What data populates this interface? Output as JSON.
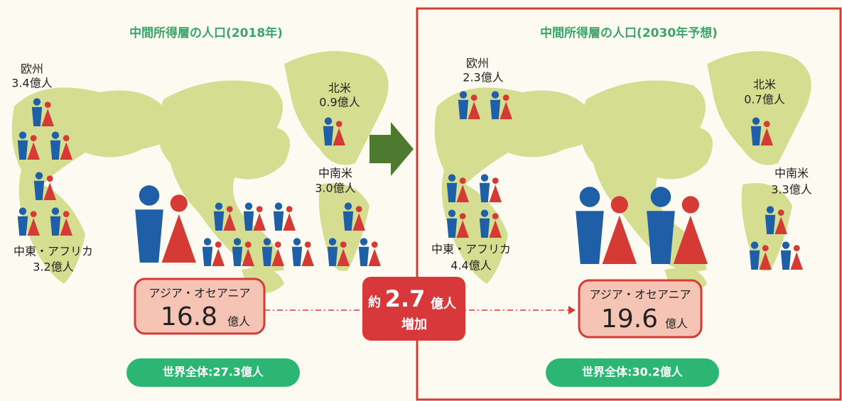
{
  "panels": [
    {
      "title": "中間所得層の人口(2018年)",
      "europe": {
        "name": "欧州",
        "value": "3.4億人"
      },
      "north_america": {
        "name": "北米",
        "value": "0.9億人"
      },
      "latin_america": {
        "name": "中南米",
        "value": "3.0億人"
      },
      "mideast_africa": {
        "name": "中東・アフリカ",
        "value": "3.2億人"
      },
      "asia": {
        "name": "アジア・オセアニア",
        "amount": "16.8",
        "unit": "億人"
      },
      "world": "世界全体:27.3億人"
    },
    {
      "title": "中間所得層の人口(2030年予想)",
      "europe": {
        "name": "欧州",
        "value": "2.3億人"
      },
      "north_america": {
        "name": "北米",
        "value": "0.7億人"
      },
      "latin_america": {
        "name": "中南米",
        "value": "3.3億人"
      },
      "mideast_africa": {
        "name": "中東・アフリカ",
        "value": "4.4億人"
      },
      "asia": {
        "name": "アジア・オセアニア",
        "amount": "19.6",
        "unit": "億人"
      },
      "world": "世界全体:30.2億人"
    }
  ],
  "change": {
    "prefix": "約",
    "amount": "2.7",
    "unit": "億人",
    "label": "増加"
  }
}
